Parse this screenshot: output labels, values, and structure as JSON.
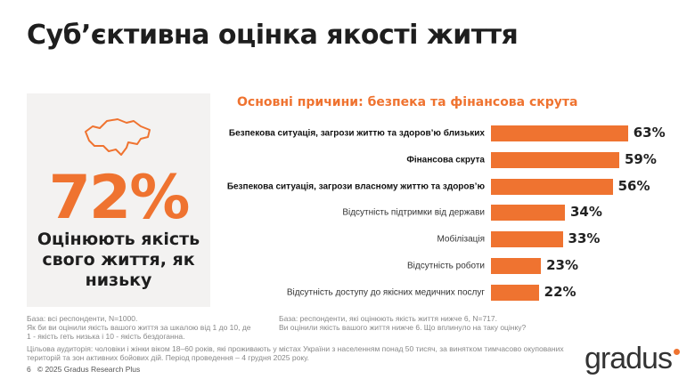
{
  "title": "Суб’єктивна оцінка якості життя",
  "panel": {
    "percent": "72%",
    "text": "Оцінюють якість свого життя, як низьку"
  },
  "chart_data": {
    "type": "bar",
    "orientation": "horizontal",
    "title": "Основні причини: безпека та фінансова скрута",
    "categories": [
      "Безпекова ситуація, загрози життю та здоров’ю близьких",
      "Фінансова скрута",
      "Безпекова ситуація, загрози власному життю та здоров’ю",
      "Відсутність підтримки від держави",
      "Мобілізація",
      "Відсутність роботи",
      "Відсутність доступу до якісних медичних послуг"
    ],
    "values": [
      63,
      59,
      56,
      34,
      33,
      23,
      22
    ],
    "value_labels": [
      "63%",
      "59%",
      "56%",
      "34%",
      "33%",
      "23%",
      "22%"
    ],
    "bold": [
      true,
      true,
      true,
      false,
      false,
      false,
      false
    ],
    "color": "#ef7330",
    "xlim": [
      0,
      100
    ]
  },
  "notes": {
    "left": "База: всі респонденти, N=1000.\nЯк би ви оцінили якість вашого життя за шкалою від 1 до 10, де\n1 - якість геть низька і 10 - якість бездоганна.",
    "right": "База: респонденти, які оцінюють якість життя нижче 6, N=717.\nВи оцінили якість вашого життя нижче 6. Що вплинуло на таку оцінку?",
    "audience": "Цільова аудиторія: чоловіки і жінки віком 18–60 років, які проживають у містах України з населенням понад 50 тисяч, за винятком тимчасово окупованих територій та зон активних бойових дій. Період проведення – 4 грудня 2025 року.",
    "page": "6",
    "copyright": "© 2025 Gradus Research Plus"
  },
  "logo": "gradus"
}
